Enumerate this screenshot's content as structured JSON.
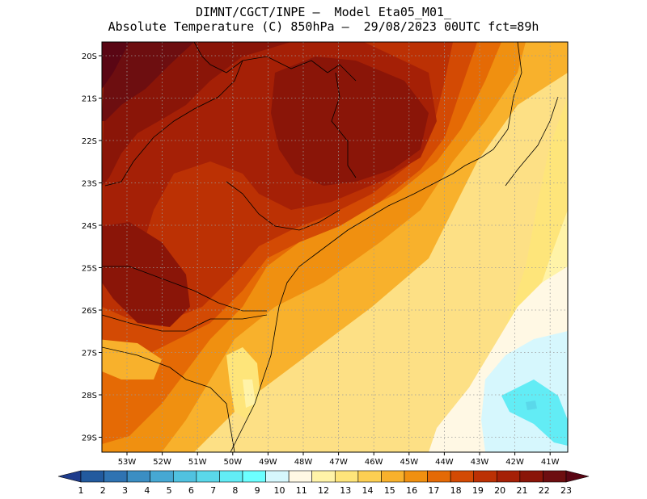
{
  "title": {
    "line1": "DIMNT/CGCT/INPE —  Model Eta05_M01_",
    "line2": "Absolute Temperature (C) 850hPa —  29/08/2023 00UTC fct=89h"
  },
  "map": {
    "lat_labels": [
      "20S",
      "21S",
      "22S",
      "23S",
      "24S",
      "25S",
      "26S",
      "27S",
      "28S",
      "29S"
    ],
    "lon_labels": [
      "53W",
      "52W",
      "51W",
      "50W",
      "49W",
      "48W",
      "47W",
      "46W",
      "45W",
      "44W",
      "43W",
      "42W",
      "41W"
    ],
    "grid": "dotted",
    "colors": {
      "background_ocean": "#fde085",
      "grid_line": "#9a9a9a",
      "coastline": "#000000"
    }
  },
  "colorbar": {
    "labels": [
      "1",
      "2",
      "3",
      "4",
      "5",
      "6",
      "7",
      "8",
      "9",
      "10",
      "11",
      "12",
      "13",
      "14",
      "15",
      "16",
      "17",
      "18",
      "19",
      "20",
      "21",
      "22",
      "23"
    ],
    "colors": [
      "#1e3c8c",
      "#225a9e",
      "#2f73b2",
      "#3b8ec3",
      "#46a8d3",
      "#50c2e0",
      "#5ad8ea",
      "#62ecf5",
      "#6cffff",
      "#d6f7fd",
      "#fff8e4",
      "#fff3a8",
      "#fee57a",
      "#fdcf52",
      "#f8b12c",
      "#f09010",
      "#e56a05",
      "#d34a04",
      "#bc3104",
      "#a52006",
      "#8a1508",
      "#6d0e10",
      "#5a0614"
    ]
  }
}
